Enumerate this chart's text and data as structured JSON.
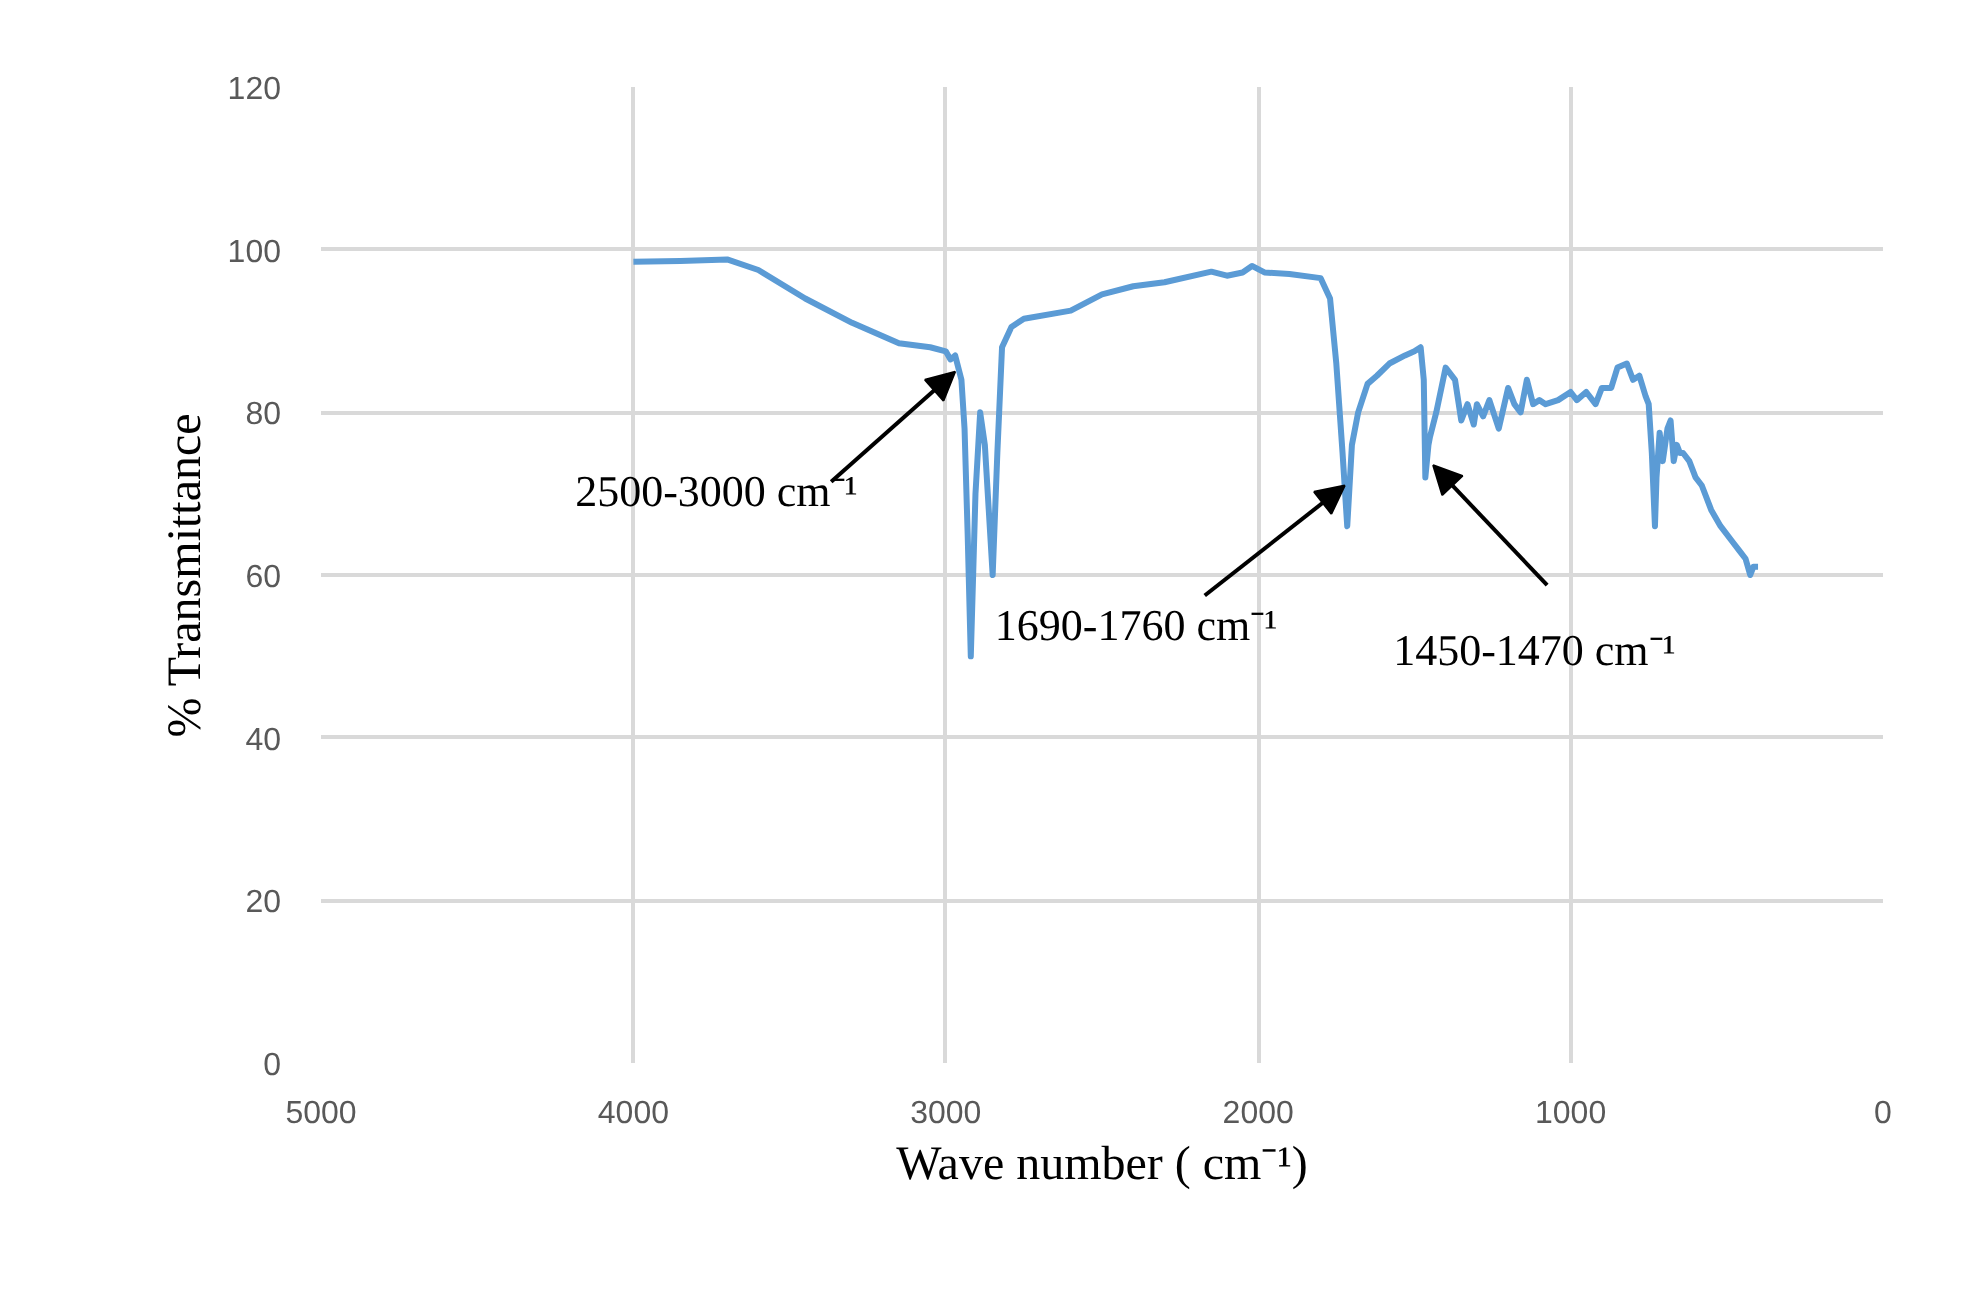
{
  "chart_data": {
    "type": "line",
    "xlabel": "Wave number ( cm⁻¹)",
    "ylabel": "% Transmittance",
    "xlim": [
      5000,
      0
    ],
    "xticks": [
      5000,
      4000,
      3000,
      2000,
      1000,
      0
    ],
    "ylim": [
      0,
      120
    ],
    "yticks": [
      0,
      20,
      40,
      60,
      80,
      100,
      120
    ],
    "grid": true,
    "marker": "none",
    "line_style": "solid",
    "series": [
      {
        "color": "#5b9bd5",
        "x": [
          4000,
          3850,
          3700,
          3600,
          3450,
          3300,
          3150,
          3050,
          3000,
          2985,
          2970,
          2950,
          2940,
          2930,
          2920,
          2905,
          2890,
          2875,
          2850,
          2835,
          2820,
          2790,
          2750,
          2600,
          2500,
          2400,
          2300,
          2150,
          2100,
          2050,
          2020,
          1980,
          1900,
          1800,
          1770,
          1750,
          1730,
          1715,
          1700,
          1680,
          1650,
          1620,
          1580,
          1530,
          1500,
          1480,
          1470,
          1465,
          1455,
          1450,
          1430,
          1400,
          1370,
          1350,
          1330,
          1310,
          1300,
          1280,
          1260,
          1230,
          1200,
          1180,
          1160,
          1140,
          1120,
          1100,
          1080,
          1040,
          1000,
          980,
          950,
          920,
          900,
          870,
          850,
          820,
          800,
          780,
          760,
          750,
          740,
          730,
          725,
          715,
          705,
          690,
          680,
          670,
          660,
          650,
          640,
          620,
          600,
          580,
          550,
          520,
          480,
          460,
          440,
          425,
          415,
          400
        ],
        "values": [
          98.5,
          98.6,
          98.8,
          97.5,
          94,
          91,
          88.5,
          88,
          87.5,
          86.5,
          87,
          84,
          78,
          65,
          50,
          70,
          80,
          76,
          60,
          75,
          88,
          90.5,
          91.5,
          92.5,
          94.5,
          95.5,
          96,
          97.3,
          96.8,
          97.2,
          98,
          97.2,
          97,
          96.5,
          94,
          86,
          75,
          66,
          76,
          80,
          83.5,
          84.5,
          86,
          87,
          87.5,
          88,
          84,
          72,
          76,
          77,
          80,
          85.5,
          84,
          79,
          81,
          78.5,
          81,
          79.5,
          81.5,
          78,
          83,
          81,
          80,
          84,
          81,
          81.5,
          81,
          81.5,
          82.5,
          81.5,
          82.5,
          81,
          83,
          83,
          85.5,
          86,
          84,
          84.5,
          82,
          81,
          75,
          66,
          72,
          77.5,
          74,
          78,
          79,
          74,
          76,
          75,
          75,
          74,
          72,
          71,
          68,
          66,
          64,
          63,
          62,
          60,
          61,
          61
        ]
      }
    ],
    "annotations": [
      {
        "text": "2500-3000 cm⁻¹",
        "x": 2970,
        "y": 85
      },
      {
        "text": "1690-1760 cm⁻¹",
        "x": 1723,
        "y": 71
      },
      {
        "text": "1450-1470 cm⁻¹",
        "x": 1440,
        "y": 73.5
      }
    ]
  }
}
